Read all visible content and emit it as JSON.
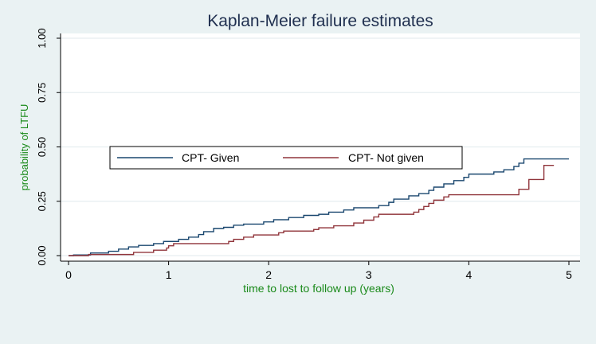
{
  "chart_data": {
    "type": "line",
    "step": true,
    "title": "Kaplan-Meier failure estimates",
    "xlabel": "time to lost to follow up (years)",
    "ylabel": "probability of LTFU",
    "xlim": [
      0,
      5
    ],
    "ylim": [
      0,
      1
    ],
    "x_ticks": [
      "0",
      "1",
      "2",
      "3",
      "4",
      "5"
    ],
    "y_ticks": [
      "0.00",
      "0.25",
      "0.50",
      "0.75",
      "1.00"
    ],
    "grid": true,
    "legend_position": "center-left",
    "series": [
      {
        "name": "CPT- Given",
        "color": "#1a476f",
        "points": [
          [
            0,
            0
          ],
          [
            0.05,
            0.003
          ],
          [
            0.22,
            0.012
          ],
          [
            0.4,
            0.02
          ],
          [
            0.5,
            0.03
          ],
          [
            0.6,
            0.04
          ],
          [
            0.7,
            0.047
          ],
          [
            0.85,
            0.055
          ],
          [
            0.95,
            0.065
          ],
          [
            1.1,
            0.075
          ],
          [
            1.2,
            0.085
          ],
          [
            1.3,
            0.097
          ],
          [
            1.35,
            0.11
          ],
          [
            1.45,
            0.125
          ],
          [
            1.55,
            0.13
          ],
          [
            1.65,
            0.14
          ],
          [
            1.75,
            0.145
          ],
          [
            1.95,
            0.155
          ],
          [
            2.05,
            0.165
          ],
          [
            2.2,
            0.175
          ],
          [
            2.35,
            0.185
          ],
          [
            2.5,
            0.19
          ],
          [
            2.6,
            0.2
          ],
          [
            2.75,
            0.21
          ],
          [
            2.85,
            0.22
          ],
          [
            3.1,
            0.23
          ],
          [
            3.2,
            0.245
          ],
          [
            3.25,
            0.26
          ],
          [
            3.4,
            0.275
          ],
          [
            3.5,
            0.285
          ],
          [
            3.6,
            0.3
          ],
          [
            3.65,
            0.315
          ],
          [
            3.75,
            0.33
          ],
          [
            3.85,
            0.345
          ],
          [
            3.95,
            0.36
          ],
          [
            4.0,
            0.375
          ],
          [
            4.25,
            0.385
          ],
          [
            4.35,
            0.395
          ],
          [
            4.45,
            0.41
          ],
          [
            4.5,
            0.425
          ],
          [
            4.55,
            0.445
          ],
          [
            5.0,
            0.445
          ]
        ]
      },
      {
        "name": "CPT- Not given",
        "color": "#90353b",
        "points": [
          [
            0,
            0
          ],
          [
            0.2,
            0.005
          ],
          [
            0.65,
            0.015
          ],
          [
            0.85,
            0.025
          ],
          [
            0.98,
            0.035
          ],
          [
            1.0,
            0.045
          ],
          [
            1.05,
            0.055
          ],
          [
            1.6,
            0.065
          ],
          [
            1.65,
            0.075
          ],
          [
            1.75,
            0.085
          ],
          [
            1.85,
            0.095
          ],
          [
            2.1,
            0.105
          ],
          [
            2.15,
            0.113
          ],
          [
            2.45,
            0.12
          ],
          [
            2.5,
            0.128
          ],
          [
            2.65,
            0.137
          ],
          [
            2.85,
            0.15
          ],
          [
            2.95,
            0.163
          ],
          [
            3.05,
            0.178
          ],
          [
            3.1,
            0.19
          ],
          [
            3.45,
            0.2
          ],
          [
            3.5,
            0.212
          ],
          [
            3.55,
            0.226
          ],
          [
            3.6,
            0.24
          ],
          [
            3.65,
            0.255
          ],
          [
            3.75,
            0.27
          ],
          [
            3.8,
            0.28
          ],
          [
            4.5,
            0.305
          ],
          [
            4.6,
            0.35
          ],
          [
            4.75,
            0.415
          ],
          [
            4.85,
            0.415
          ]
        ]
      }
    ]
  }
}
